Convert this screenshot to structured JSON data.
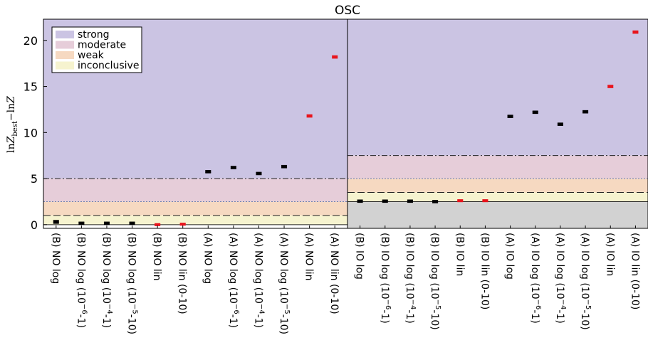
{
  "chart_data": {
    "type": "scatter",
    "title": "OSC",
    "ylabel": "lnZ_best − lnZ",
    "ylabel_parts": {
      "lead": "ln",
      "Z": "Z",
      "sub": "best",
      "minus": "−ln",
      "Z2": "Z"
    },
    "ylim": [
      -0.4,
      22.3
    ],
    "yticks": [
      0,
      5,
      10,
      15,
      20
    ],
    "legend": {
      "position": "top-left",
      "entries": [
        {
          "label": "strong",
          "color": "#cbc4e3"
        },
        {
          "label": "moderate",
          "color": "#e6cdd9"
        },
        {
          "label": "weak",
          "color": "#f6d9c1"
        },
        {
          "label": "inconclusive",
          "color": "#f6f3cf"
        }
      ]
    },
    "panels": [
      {
        "name": "NO",
        "bands": [
          {
            "label": "strong",
            "from": 5,
            "to": 22.3,
            "color": "#cbc4e3"
          },
          {
            "label": "moderate",
            "from": 2.5,
            "to": 5,
            "color": "#e6cdd9"
          },
          {
            "label": "weak",
            "from": 1,
            "to": 2.5,
            "color": "#f6d9c1"
          },
          {
            "label": "inconclusive",
            "from": 0,
            "to": 1,
            "color": "#f6f3cf"
          }
        ],
        "categories": [
          {
            "pre": "(B) NO log",
            "sup": "",
            "post": ""
          },
          {
            "pre": "(B) NO log (10",
            "sup": "−6",
            "post": "-1)"
          },
          {
            "pre": "(B) NO log (10",
            "sup": "−4",
            "post": "-1)"
          },
          {
            "pre": "(B) NO log (10",
            "sup": "−5",
            "post": "-10)"
          },
          {
            "pre": "(B) NO lin",
            "sup": "",
            "post": ""
          },
          {
            "pre": "(B) NO lin (0-10)",
            "sup": "",
            "post": ""
          },
          {
            "pre": "(A) NO log",
            "sup": "",
            "post": ""
          },
          {
            "pre": "(A) NO log (10",
            "sup": "−6",
            "post": "-1)"
          },
          {
            "pre": "(A) NO log (10",
            "sup": "−4",
            "post": "-1)"
          },
          {
            "pre": "(A) NO log (10",
            "sup": "−5",
            "post": "-10)"
          },
          {
            "pre": "(A) NO lin",
            "sup": "",
            "post": ""
          },
          {
            "pre": "(A) NO lin (0-10)",
            "sup": "",
            "post": ""
          }
        ],
        "values": [
          0.3,
          0.15,
          0.15,
          0.15,
          0.0,
          0.05,
          5.75,
          6.2,
          5.55,
          6.3,
          11.8,
          18.2
        ],
        "errors": [
          0.15,
          0.12,
          0.12,
          0.12,
          0.1,
          0.1,
          0.12,
          0.12,
          0.12,
          0.12,
          0.12,
          0.12
        ],
        "colors": [
          "#000000",
          "#000000",
          "#000000",
          "#000000",
          "#e8141c",
          "#e8141c",
          "#000000",
          "#000000",
          "#000000",
          "#000000",
          "#e8141c",
          "#e8141c"
        ]
      },
      {
        "name": "IO",
        "bands": [
          {
            "label": "strong",
            "from": 7.5,
            "to": 22.3,
            "color": "#cbc4e3"
          },
          {
            "label": "moderate",
            "from": 5,
            "to": 7.5,
            "color": "#e6cdd9"
          },
          {
            "label": "weak",
            "from": 3.5,
            "to": 5,
            "color": "#f6d9c1"
          },
          {
            "label": "inconclusive",
            "from": 2.5,
            "to": 3.5,
            "color": "#f6f3cf"
          },
          {
            "label": "",
            "from": -0.4,
            "to": 2.5,
            "color": "#d2d2d2"
          }
        ],
        "categories": [
          {
            "pre": "(B) IO log",
            "sup": "",
            "post": ""
          },
          {
            "pre": "(B) IO log (10",
            "sup": "−6",
            "post": "-1)"
          },
          {
            "pre": "(B) IO log (10",
            "sup": "−4",
            "post": "-1)"
          },
          {
            "pre": "(B) IO log (10",
            "sup": "−5",
            "post": "-10)"
          },
          {
            "pre": "(B) IO lin",
            "sup": "",
            "post": ""
          },
          {
            "pre": "(B) IO lin (0-10)",
            "sup": "",
            "post": ""
          },
          {
            "pre": "(A) IO log",
            "sup": "",
            "post": ""
          },
          {
            "pre": "(A) IO log (10",
            "sup": "−6",
            "post": "-1)"
          },
          {
            "pre": "(A) IO log (10",
            "sup": "−4",
            "post": "-1)"
          },
          {
            "pre": "(A) IO log (10",
            "sup": "−5",
            "post": "-10)"
          },
          {
            "pre": "(A) IO lin",
            "sup": "",
            "post": ""
          },
          {
            "pre": "(A) IO lin (0-10)",
            "sup": "",
            "post": ""
          }
        ],
        "values": [
          2.55,
          2.55,
          2.55,
          2.5,
          2.6,
          2.6,
          11.75,
          12.2,
          10.9,
          12.25,
          15.0,
          20.9
        ],
        "errors": [
          0.12,
          0.12,
          0.12,
          0.12,
          0.1,
          0.1,
          0.12,
          0.12,
          0.12,
          0.12,
          0.12,
          0.12
        ],
        "colors": [
          "#000000",
          "#000000",
          "#000000",
          "#000000",
          "#e8141c",
          "#e8141c",
          "#000000",
          "#000000",
          "#000000",
          "#000000",
          "#e8141c",
          "#e8141c"
        ]
      }
    ]
  }
}
